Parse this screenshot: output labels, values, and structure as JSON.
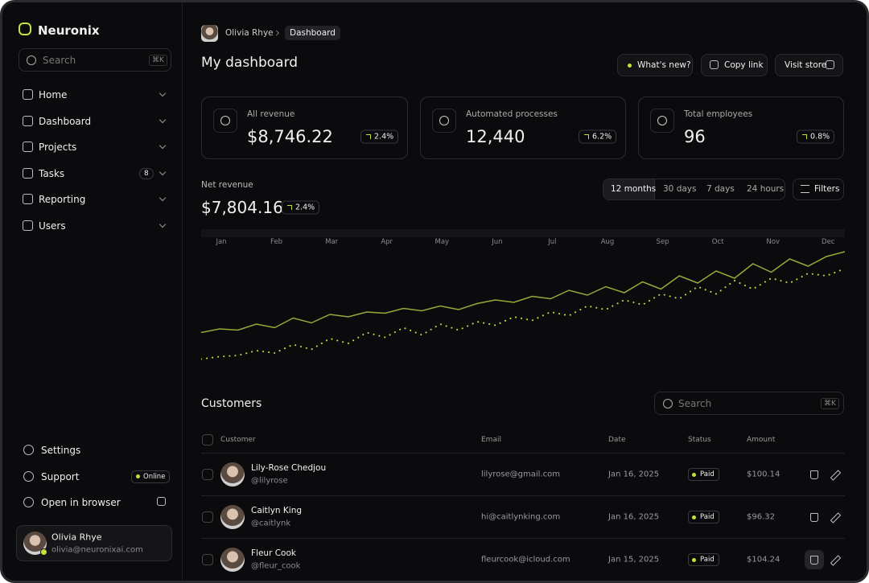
{
  "sidebar": {
    "brand": "Neuronix",
    "search_placeholder": "Search",
    "search_shortcut": "⌘K",
    "nav": [
      {
        "label": "Home"
      },
      {
        "label": "Dashboard"
      },
      {
        "label": "Projects"
      },
      {
        "label": "Tasks",
        "badge": "8"
      },
      {
        "label": "Reporting"
      },
      {
        "label": "Users"
      }
    ],
    "footer_nav": [
      {
        "label": "Settings"
      },
      {
        "label": "Support",
        "badge": "Online"
      },
      {
        "label": "Open in browser"
      }
    ],
    "user": {
      "name": "Olivia Rhye",
      "email": "olivia@neuronixai.com"
    }
  },
  "header": {
    "breadcrumb_user": "Olivia Rhye",
    "breadcrumb_current": "Dashboard",
    "title": "My dashboard",
    "buttons": [
      "What's new?",
      "Copy link",
      "Visit store"
    ]
  },
  "stats": [
    {
      "label": "All revenue",
      "value": "$8,746.22",
      "change": "2.4%"
    },
    {
      "label": "Automated processes",
      "value": "12,440",
      "change": "6.2%"
    },
    {
      "label": "Total employees",
      "value": "96",
      "change": "0.8%"
    }
  ],
  "revenue": {
    "label": "Net revenue",
    "value": "$7,804.16",
    "change": "2.4%",
    "ranges": [
      "12 months",
      "30 days",
      "7 days",
      "24 hours"
    ],
    "filters": "Filters"
  },
  "chart_data": {
    "type": "line",
    "categories": [
      "Jan",
      null,
      null,
      "Feb",
      null,
      null,
      "Mar",
      null,
      null,
      "Apr",
      null,
      null,
      "May",
      null,
      null,
      "Jun",
      null,
      null,
      "Jul",
      null,
      null,
      "Aug",
      null,
      null,
      "Sep",
      null,
      null,
      "Oct",
      null,
      null,
      "Nov",
      null,
      null,
      "Dec",
      null,
      null
    ],
    "ylim": [
      0,
      100
    ],
    "series": [
      {
        "color": "#9aa83a",
        "style": "solid",
        "values": [
          25,
          28,
          27,
          32,
          29,
          37,
          33,
          40,
          38,
          42,
          41,
          45,
          43,
          47,
          44,
          49,
          52,
          50,
          55,
          53,
          60,
          56,
          63,
          58,
          67,
          61,
          72,
          66,
          76,
          70,
          82,
          75,
          86,
          80,
          88,
          92
        ]
      },
      {
        "color": "#c8e03c",
        "style": "dotted",
        "values": [
          3,
          5,
          6,
          10,
          8,
          15,
          11,
          20,
          16,
          25,
          21,
          29,
          23,
          32,
          27,
          34,
          31,
          38,
          35,
          42,
          39,
          47,
          44,
          52,
          48,
          57,
          53,
          63,
          57,
          68,
          61,
          70,
          66,
          74,
          72,
          78
        ]
      }
    ]
  },
  "customers": {
    "title": "Customers",
    "search_placeholder": "Search",
    "search_shortcut": "⌘K",
    "columns": [
      "Customer",
      "Email",
      "Date",
      "Status",
      "Amount"
    ],
    "rows": [
      {
        "name": "Lily-Rose Chedjou",
        "handle": "@lilyrose",
        "email": "lilyrose@gmail.com",
        "date": "Jan 16, 2025",
        "status": "Paid",
        "amount": "$100.14"
      },
      {
        "name": "Caitlyn King",
        "handle": "@caitlynk",
        "email": "hi@caitlynking.com",
        "date": "Jan 16, 2025",
        "status": "Paid",
        "amount": "$96.32"
      },
      {
        "name": "Fleur Cook",
        "handle": "@fleur_cook",
        "email": "fleurcook@icloud.com",
        "date": "Jan 15, 2025",
        "status": "Paid",
        "amount": "$104.24"
      }
    ]
  }
}
